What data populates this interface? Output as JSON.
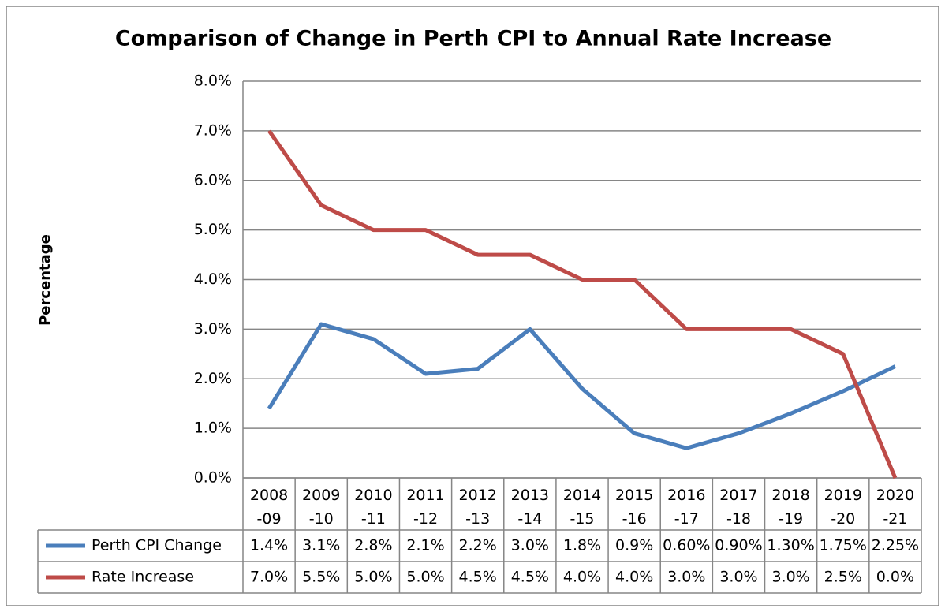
{
  "chart_data": {
    "type": "line",
    "title": "Comparison of Change in Perth CPI to Annual Rate Increase",
    "y_label": "Percentage",
    "categories": [
      "2008-09",
      "2009-10",
      "2010-11",
      "2011-12",
      "2012-13",
      "2013-14",
      "2014-15",
      "2015-16",
      "2016-17",
      "2017-18",
      "2018-19",
      "2019-20",
      "2020-21"
    ],
    "series": [
      {
        "name": "Perth CPI Change",
        "color": "#4a7ebb",
        "values": [
          1.4,
          3.1,
          2.8,
          2.1,
          2.2,
          3.0,
          1.8,
          0.9,
          0.6,
          0.9,
          1.3,
          1.75,
          2.25
        ],
        "value_labels": [
          "1.4%",
          "3.1%",
          "2.8%",
          "2.1%",
          "2.2%",
          "3.0%",
          "1.8%",
          "0.9%",
          "0.60%",
          "0.90%",
          "1.30%",
          "1.75%",
          "2.25%"
        ]
      },
      {
        "name": "Rate Increase",
        "color": "#be4b48",
        "values": [
          7.0,
          5.5,
          5.0,
          5.0,
          4.5,
          4.5,
          4.0,
          4.0,
          3.0,
          3.0,
          3.0,
          2.5,
          0.0
        ],
        "value_labels": [
          "7.0%",
          "5.5%",
          "5.0%",
          "5.0%",
          "4.5%",
          "4.5%",
          "4.0%",
          "4.0%",
          "3.0%",
          "3.0%",
          "3.0%",
          "2.5%",
          "0.0%"
        ]
      }
    ],
    "ylim": [
      0,
      8
    ],
    "yticks": [
      {
        "value": 0,
        "label": "0.0%"
      },
      {
        "value": 1,
        "label": "1.0%"
      },
      {
        "value": 2,
        "label": "2.0%"
      },
      {
        "value": 3,
        "label": "3.0%"
      },
      {
        "value": 4,
        "label": "4.0%"
      },
      {
        "value": 5,
        "label": "5.0%"
      },
      {
        "value": 6,
        "label": "6.0%"
      },
      {
        "value": 7,
        "label": "7.0%"
      },
      {
        "value": 8,
        "label": "8.0%"
      }
    ],
    "grid": true
  }
}
